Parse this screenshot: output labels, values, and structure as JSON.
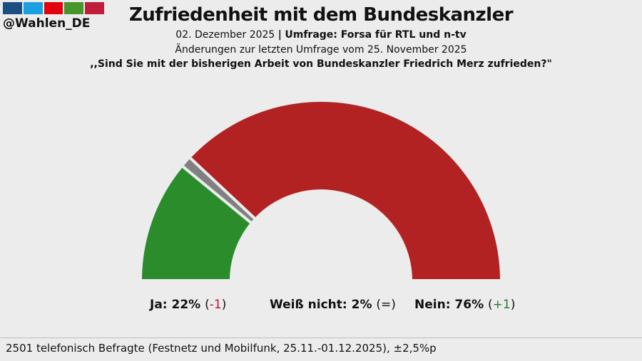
{
  "brand": {
    "handle": "@Wahlen_DE",
    "colors": [
      "#1a4f80",
      "#1aa0e0",
      "#e3000f",
      "#46962b",
      "#be1e3c"
    ]
  },
  "header": {
    "title": "Zufriedenheit mit dem Bundeskanzler",
    "date": "02. Dezember 2025",
    "separator": "|",
    "poll": "Umfrage: Forsa für RTL und n-tv",
    "changes": "Änderungen zur letzten Umfrage vom 25. November 2025",
    "question": ",,Sind Sie mit der bisherigen Arbeit von Bundeskanzler Friedrich Merz zufrieden?\""
  },
  "chart_data": {
    "type": "pie",
    "shape": "half-donut",
    "categories": [
      "Ja",
      "Weiß nicht",
      "Nein"
    ],
    "values": [
      22,
      2,
      76
    ],
    "value_labels": [
      "22%",
      "2%",
      "76%"
    ],
    "changes": [
      "-1",
      "=",
      "+1"
    ],
    "colors": [
      "#2a8c2a",
      "#808080",
      "#b22222"
    ],
    "change_colors": [
      "#c8102e",
      "#111111",
      "#2a7a2a"
    ]
  },
  "footer": {
    "text": "2501 telefonisch Befragte (Festnetz und Mobilfunk, 25.11.-01.12.2025), ±2,5%p"
  }
}
